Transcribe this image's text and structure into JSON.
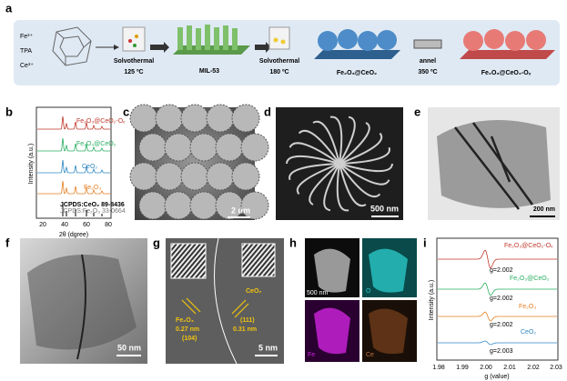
{
  "panel_labels": [
    "a",
    "b",
    "c",
    "d",
    "e",
    "f",
    "g",
    "h",
    "i"
  ],
  "a": {
    "precursors": [
      "Fe³⁺",
      "TPA",
      "Ce³⁺"
    ],
    "step1": [
      "Solvothermal",
      "125 ºC"
    ],
    "product1": "MIL-53",
    "step2": [
      "Solvothermal",
      "180 ºC"
    ],
    "product2": "Fe₂O₃@CeO₂",
    "step3": [
      "annel",
      "350 ºC"
    ],
    "product3": "Fe₂O₃@CeO₂-Oᵥ"
  },
  "b": {
    "ylabel": "Intensity (a.u.)",
    "xlabel": "2θ (dgree)",
    "xticks": [
      "20",
      "40",
      "60",
      "80"
    ],
    "series": [
      "Fe₂O₃@CeO₂-Oᵥ",
      "Fe₂O₃@CeO₂",
      "CeO₂",
      "Fe₂O₃"
    ],
    "references": [
      "JCPDS:CeO₂ 89-8436",
      "JCPDS:Fe₂O₃ 33-0664"
    ]
  },
  "c": {
    "scale": "2 um"
  },
  "d": {
    "scale": "500 nm"
  },
  "e": {
    "scale": "200 nm"
  },
  "f": {
    "scale": "50 nm"
  },
  "g": {
    "left": [
      "Fe₂O₃",
      "0.27 nm",
      "(104)"
    ],
    "right": [
      "CeO₂",
      "(111)",
      "0.31 nm"
    ],
    "scale": "5 nm"
  },
  "h": {
    "scale": "500 nm",
    "elements": [
      "O",
      "Fe",
      "Ce"
    ]
  },
  "i": {
    "ylabel": "Intensity (a.u.)",
    "xlabel": "g (value)",
    "xticks": [
      "1.98",
      "1.99",
      "2.00",
      "2.01",
      "2.02",
      "2.03"
    ],
    "series": [
      "Fe₂O₃@CeO₂-Oᵥ",
      "Fe₂O₃@CeO₂",
      "Fe₂O₃",
      "CeO₂"
    ],
    "g_values": [
      "g=2.002",
      "g=2.002",
      "g=2.002",
      "g=2.003"
    ]
  }
}
